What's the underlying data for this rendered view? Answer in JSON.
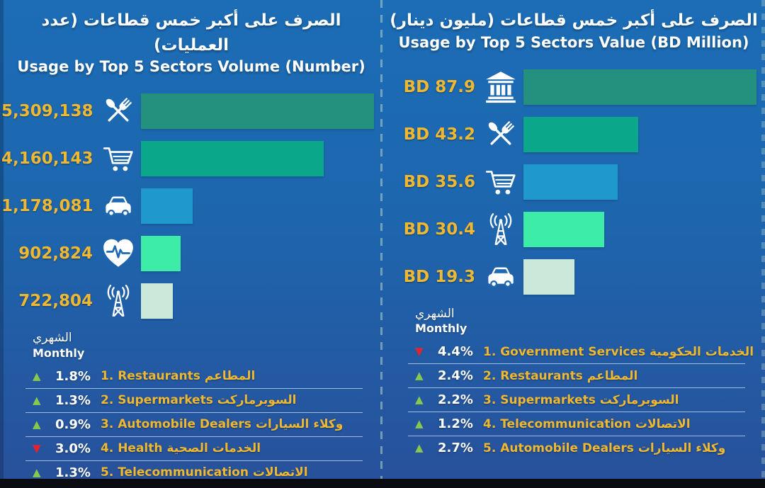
{
  "colors": {
    "background_top": "#1c6db6",
    "background_bottom": "#28509a",
    "gold": "#eeb832",
    "up_green": "#86c94e",
    "down_red": "#e6222e",
    "bottom_band": "#0a0c12"
  },
  "chart_data": [
    {
      "type": "bar",
      "orientation": "horizontal",
      "title_ar": "الصرف على أكبر خمس قطاعات (عدد العمليات)",
      "title_en": "Usage by Top 5 Sectors Volume (Number)",
      "categories": [
        "Restaurants",
        "Supermarkets",
        "Automobile Dealers",
        "Health",
        "Telecommunication"
      ],
      "values": [
        5309138,
        4160143,
        1178081,
        902824,
        722804
      ],
      "value_labels": [
        "5,309,138",
        "4,160,143",
        "1,178,081",
        "902,824",
        "722,804"
      ],
      "icons": [
        "restaurant-icon",
        "shopping-cart-icon",
        "car-icon",
        "health-icon",
        "antenna-icon"
      ],
      "bar_colors": [
        "#24917e",
        "#0ba78a",
        "#1f99cd",
        "#3deca6",
        "#cbe9da"
      ],
      "xlim": [
        0,
        5309138
      ],
      "legend": "none",
      "grid": "off",
      "monthly_header_ar": "الشهري",
      "monthly_header_en": "Monthly",
      "monthly_changes": [
        {
          "direction": "up",
          "pct": "1.8%",
          "label_en": "1. Restaurants",
          "label_ar": "المطاعم"
        },
        {
          "direction": "up",
          "pct": "1.3%",
          "label_en": "2. Supermarkets",
          "label_ar": "السوبرماركت"
        },
        {
          "direction": "up",
          "pct": "0.9%",
          "label_en": "3. Automobile Dealers",
          "label_ar": "وكلاء السيارات"
        },
        {
          "direction": "down",
          "pct": "3.0%",
          "label_en": "4. Health",
          "label_ar": "الخدمات الصحية"
        },
        {
          "direction": "up",
          "pct": "1.3%",
          "label_en": "5. Telecommunication",
          "label_ar": "الاتصالات"
        }
      ]
    },
    {
      "type": "bar",
      "orientation": "horizontal",
      "title_ar": "الصرف على أكبر خمس قطاعات (مليون دينار)",
      "title_en": "Usage by Top 5 Sectors Value (BD Million)",
      "categories": [
        "Government Services",
        "Restaurants",
        "Supermarkets",
        "Telecommunication",
        "Automobile Dealers"
      ],
      "values": [
        87.9,
        43.2,
        35.6,
        30.4,
        19.3
      ],
      "value_labels": [
        "BD 87.9",
        "BD 43.2",
        "BD 35.6",
        "BD 30.4",
        "BD 19.3"
      ],
      "icons": [
        "bank-icon",
        "restaurant-icon",
        "shopping-cart-icon",
        "antenna-icon",
        "car-icon"
      ],
      "bar_colors": [
        "#24917e",
        "#0ba78a",
        "#1f99cd",
        "#3deca6",
        "#cbe9da"
      ],
      "xlim": [
        0,
        87.9
      ],
      "legend": "none",
      "grid": "off",
      "monthly_header_ar": "الشهري",
      "monthly_header_en": "Monthly",
      "monthly_changes": [
        {
          "direction": "down",
          "pct": "4.4%",
          "label_en": "1. Government Services",
          "label_ar": "الخدمات الحكومية"
        },
        {
          "direction": "up",
          "pct": "2.4%",
          "label_en": "2. Restaurants",
          "label_ar": "المطاعم"
        },
        {
          "direction": "up",
          "pct": "2.2%",
          "label_en": "3. Supermarkets",
          "label_ar": "السوبرماركت"
        },
        {
          "direction": "up",
          "pct": "1.2%",
          "label_en": "4. Telecommunication",
          "label_ar": "الاتصالات"
        },
        {
          "direction": "up",
          "pct": "2.7%",
          "label_en": "5. Automobile Dealers",
          "label_ar": "وكلاء السيارات"
        }
      ]
    }
  ]
}
